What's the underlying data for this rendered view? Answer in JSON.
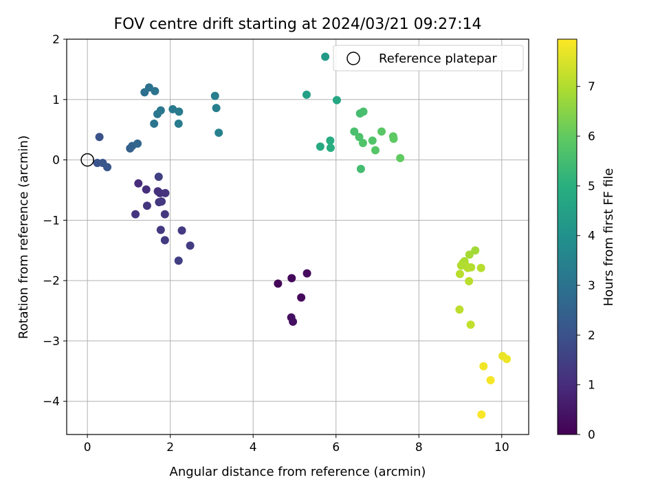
{
  "chart_data": {
    "type": "scatter",
    "title": "FOV centre drift starting at 2024/03/21 09:27:14",
    "xlabel": "Angular distance from reference (arcmin)",
    "ylabel": "Rotation from reference (arcmin)",
    "xlim": [
      -0.5,
      10.65
    ],
    "ylim": [
      -4.55,
      2.0
    ],
    "xticks": [
      0,
      2,
      4,
      6,
      8,
      10
    ],
    "yticks": [
      -4,
      -3,
      -2,
      -1,
      0,
      1,
      2
    ],
    "grid": true,
    "colormap": "viridis",
    "colorbar": {
      "label": "Hours from first FF file",
      "range": [
        0,
        7.95
      ],
      "ticks": [
        0,
        1,
        2,
        3,
        4,
        5,
        6,
        7
      ]
    },
    "reference": {
      "name": "Reference platepar",
      "x": 0,
      "y": 0
    },
    "legend": {
      "position": "upper-right",
      "entries": [
        "Reference platepar"
      ]
    },
    "series": [
      {
        "x": [
          4.6,
          4.93,
          5.16,
          5.3,
          4.92,
          4.96
        ],
        "y": [
          -2.05,
          -1.96,
          -2.28,
          -1.88,
          -2.61,
          -2.68
        ],
        "hours": [
          0.1,
          0.15,
          0.2,
          0.25,
          0.3,
          0.35
        ]
      },
      {
        "x": [
          1.23,
          1.42,
          1.7,
          1.75,
          1.88,
          1.16,
          1.44,
          1.73,
          1.79,
          1.87,
          1.77,
          2.28,
          1.87,
          2.48,
          2.2,
          1.72
        ],
        "y": [
          -0.39,
          -0.49,
          -0.52,
          -0.55,
          -0.55,
          -0.9,
          -0.76,
          -0.7,
          -0.69,
          -0.9,
          -1.16,
          -1.17,
          -1.33,
          -1.42,
          -1.67,
          -0.28
        ],
        "hours": [
          1.0,
          1.05,
          1.1,
          1.12,
          1.15,
          1.2,
          1.22,
          1.25,
          1.28,
          1.3,
          1.32,
          1.35,
          1.38,
          1.42,
          1.45,
          1.5
        ]
      },
      {
        "x": [
          0.29,
          0.24,
          0.37,
          0.48,
          1.03,
          1.08,
          1.21
        ],
        "y": [
          0.38,
          -0.05,
          -0.05,
          -0.12,
          0.19,
          0.23,
          0.27
        ],
        "hours": [
          2.0,
          2.05,
          2.1,
          2.15,
          2.4,
          2.5,
          2.6
        ]
      },
      {
        "x": [
          1.38,
          1.49,
          1.63,
          1.61,
          1.69,
          1.77,
          2.06,
          2.21,
          2.2,
          3.08,
          3.11,
          3.17
        ],
        "y": [
          1.12,
          1.2,
          1.14,
          0.6,
          0.76,
          0.82,
          0.84,
          0.8,
          0.6,
          1.06,
          0.86,
          0.45
        ],
        "hours": [
          2.9,
          2.95,
          3.0,
          3.05,
          3.1,
          3.15,
          3.2,
          3.25,
          3.3,
          3.35,
          3.4,
          3.45
        ]
      },
      {
        "x": [
          5.74,
          5.29,
          6.02,
          5.62,
          5.86,
          5.87
        ],
        "y": [
          1.71,
          1.08,
          0.99,
          0.22,
          0.32,
          0.2
        ],
        "hours": [
          4.3,
          4.5,
          4.7,
          4.8,
          4.9,
          4.95
        ]
      },
      {
        "x": [
          6.58,
          6.66,
          6.44,
          6.56,
          6.65,
          6.88,
          6.95,
          7.1,
          7.38,
          7.39,
          7.55,
          6.6
        ],
        "y": [
          0.77,
          0.8,
          0.47,
          0.38,
          0.28,
          0.32,
          0.16,
          0.47,
          0.39,
          0.35,
          0.03,
          -0.15
        ],
        "hours": [
          5.5,
          5.55,
          5.6,
          5.65,
          5.7,
          5.75,
          5.8,
          5.85,
          5.9,
          5.95,
          6.0,
          5.5
        ]
      },
      {
        "x": [
          9.36,
          9.22,
          9.1,
          9.06,
          9.13,
          9.26,
          9.18,
          9.5,
          8.99,
          9.21,
          8.98,
          9.25,
          9.02
        ],
        "y": [
          -1.5,
          -1.57,
          -1.68,
          -1.71,
          -1.75,
          -1.78,
          -1.79,
          -1.79,
          -1.89,
          -2.01,
          -2.48,
          -2.73,
          -1.75
        ],
        "hours": [
          6.8,
          6.85,
          6.9,
          6.95,
          7.0,
          7.02,
          7.05,
          7.08,
          7.1,
          7.12,
          7.15,
          7.2,
          7.0
        ]
      },
      {
        "x": [
          10.02,
          10.12,
          9.56,
          9.73,
          9.51
        ],
        "y": [
          -3.25,
          -3.3,
          -3.42,
          -3.65,
          -4.22
        ],
        "hours": [
          7.7,
          7.75,
          7.8,
          7.85,
          7.9
        ]
      }
    ]
  }
}
